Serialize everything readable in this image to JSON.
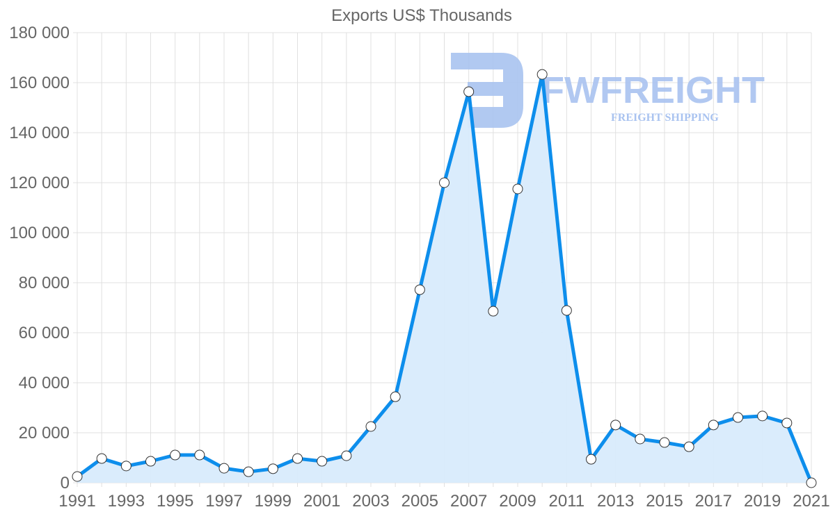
{
  "chart_data": {
    "type": "area",
    "title": "Exports US$ Thousands",
    "xlabel": "",
    "ylabel": "",
    "ylim": [
      0,
      180000
    ],
    "y_ticks": [
      "0",
      "20 000",
      "40 000",
      "60 000",
      "80 000",
      "100 000",
      "120 000",
      "140 000",
      "160 000",
      "180 000"
    ],
    "x_tick_labels": [
      "1991",
      "1993",
      "1995",
      "1997",
      "1999",
      "2001",
      "2003",
      "2005",
      "2007",
      "2009",
      "2011",
      "2013",
      "2015",
      "2017",
      "2019",
      "2021"
    ],
    "grid": true,
    "legend": "none",
    "categories": [
      1991,
      1992,
      1993,
      1994,
      1995,
      1996,
      1997,
      1998,
      1999,
      2000,
      2001,
      2002,
      2003,
      2004,
      2005,
      2006,
      2007,
      2008,
      2009,
      2010,
      2011,
      2012,
      2013,
      2014,
      2015,
      2016,
      2017,
      2018,
      2019,
      2020,
      2021
    ],
    "series": [
      {
        "name": "Exports",
        "values": [
          2500,
          9700,
          6700,
          8600,
          11100,
          11100,
          5800,
          4400,
          5600,
          9700,
          8600,
          10800,
          22500,
          34400,
          77200,
          120000,
          156400,
          68600,
          117500,
          163300,
          68900,
          9400,
          23100,
          17500,
          16100,
          14400,
          23100,
          26100,
          26700,
          23900,
          0
        ]
      }
    ],
    "colors": {
      "line": "#0d8eec",
      "fill": "#d8ebfc",
      "grid": "#e0e0e0",
      "text": "#666666",
      "point_fill": "#ffffff",
      "point_stroke": "#333333"
    }
  },
  "watermark": {
    "brand": "FWFREIGHT",
    "tagline": "FREIGHT SHIPPING",
    "color": "#a9c3f0"
  }
}
